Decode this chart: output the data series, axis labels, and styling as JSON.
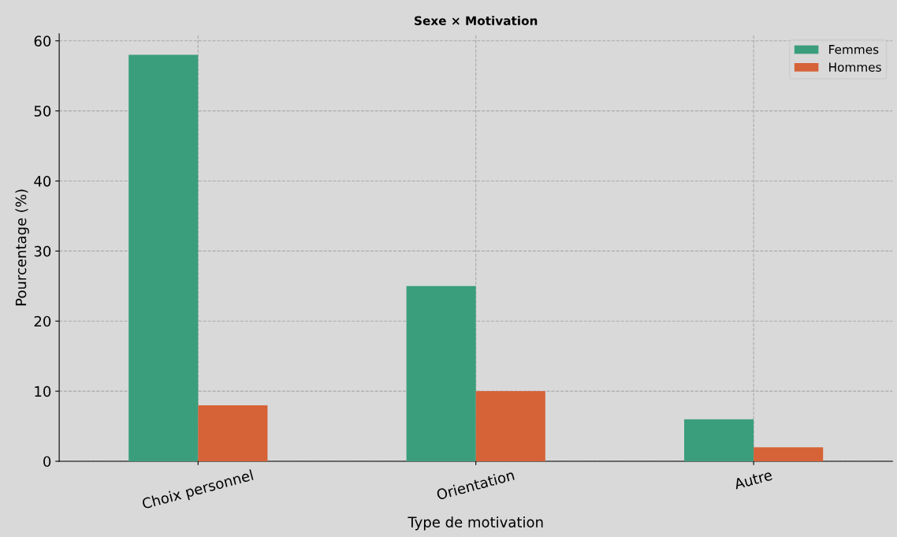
{
  "chart_data": {
    "type": "bar",
    "title": "Sexe × Motivation",
    "xlabel": "Type de motivation",
    "ylabel": "Pourcentage (%)",
    "categories": [
      "Choix personnel",
      "Orientation",
      "Autre"
    ],
    "series": [
      {
        "name": "Femmes",
        "color": "#3a9e7c",
        "values": [
          58,
          25,
          6
        ]
      },
      {
        "name": "Hommes",
        "color": "#d66237",
        "values": [
          8,
          10,
          2
        ]
      }
    ],
    "ylim": [
      0,
      61
    ],
    "yticks": [
      0,
      10,
      20,
      30,
      40,
      50,
      60
    ],
    "grid": true,
    "legend": "top right"
  }
}
